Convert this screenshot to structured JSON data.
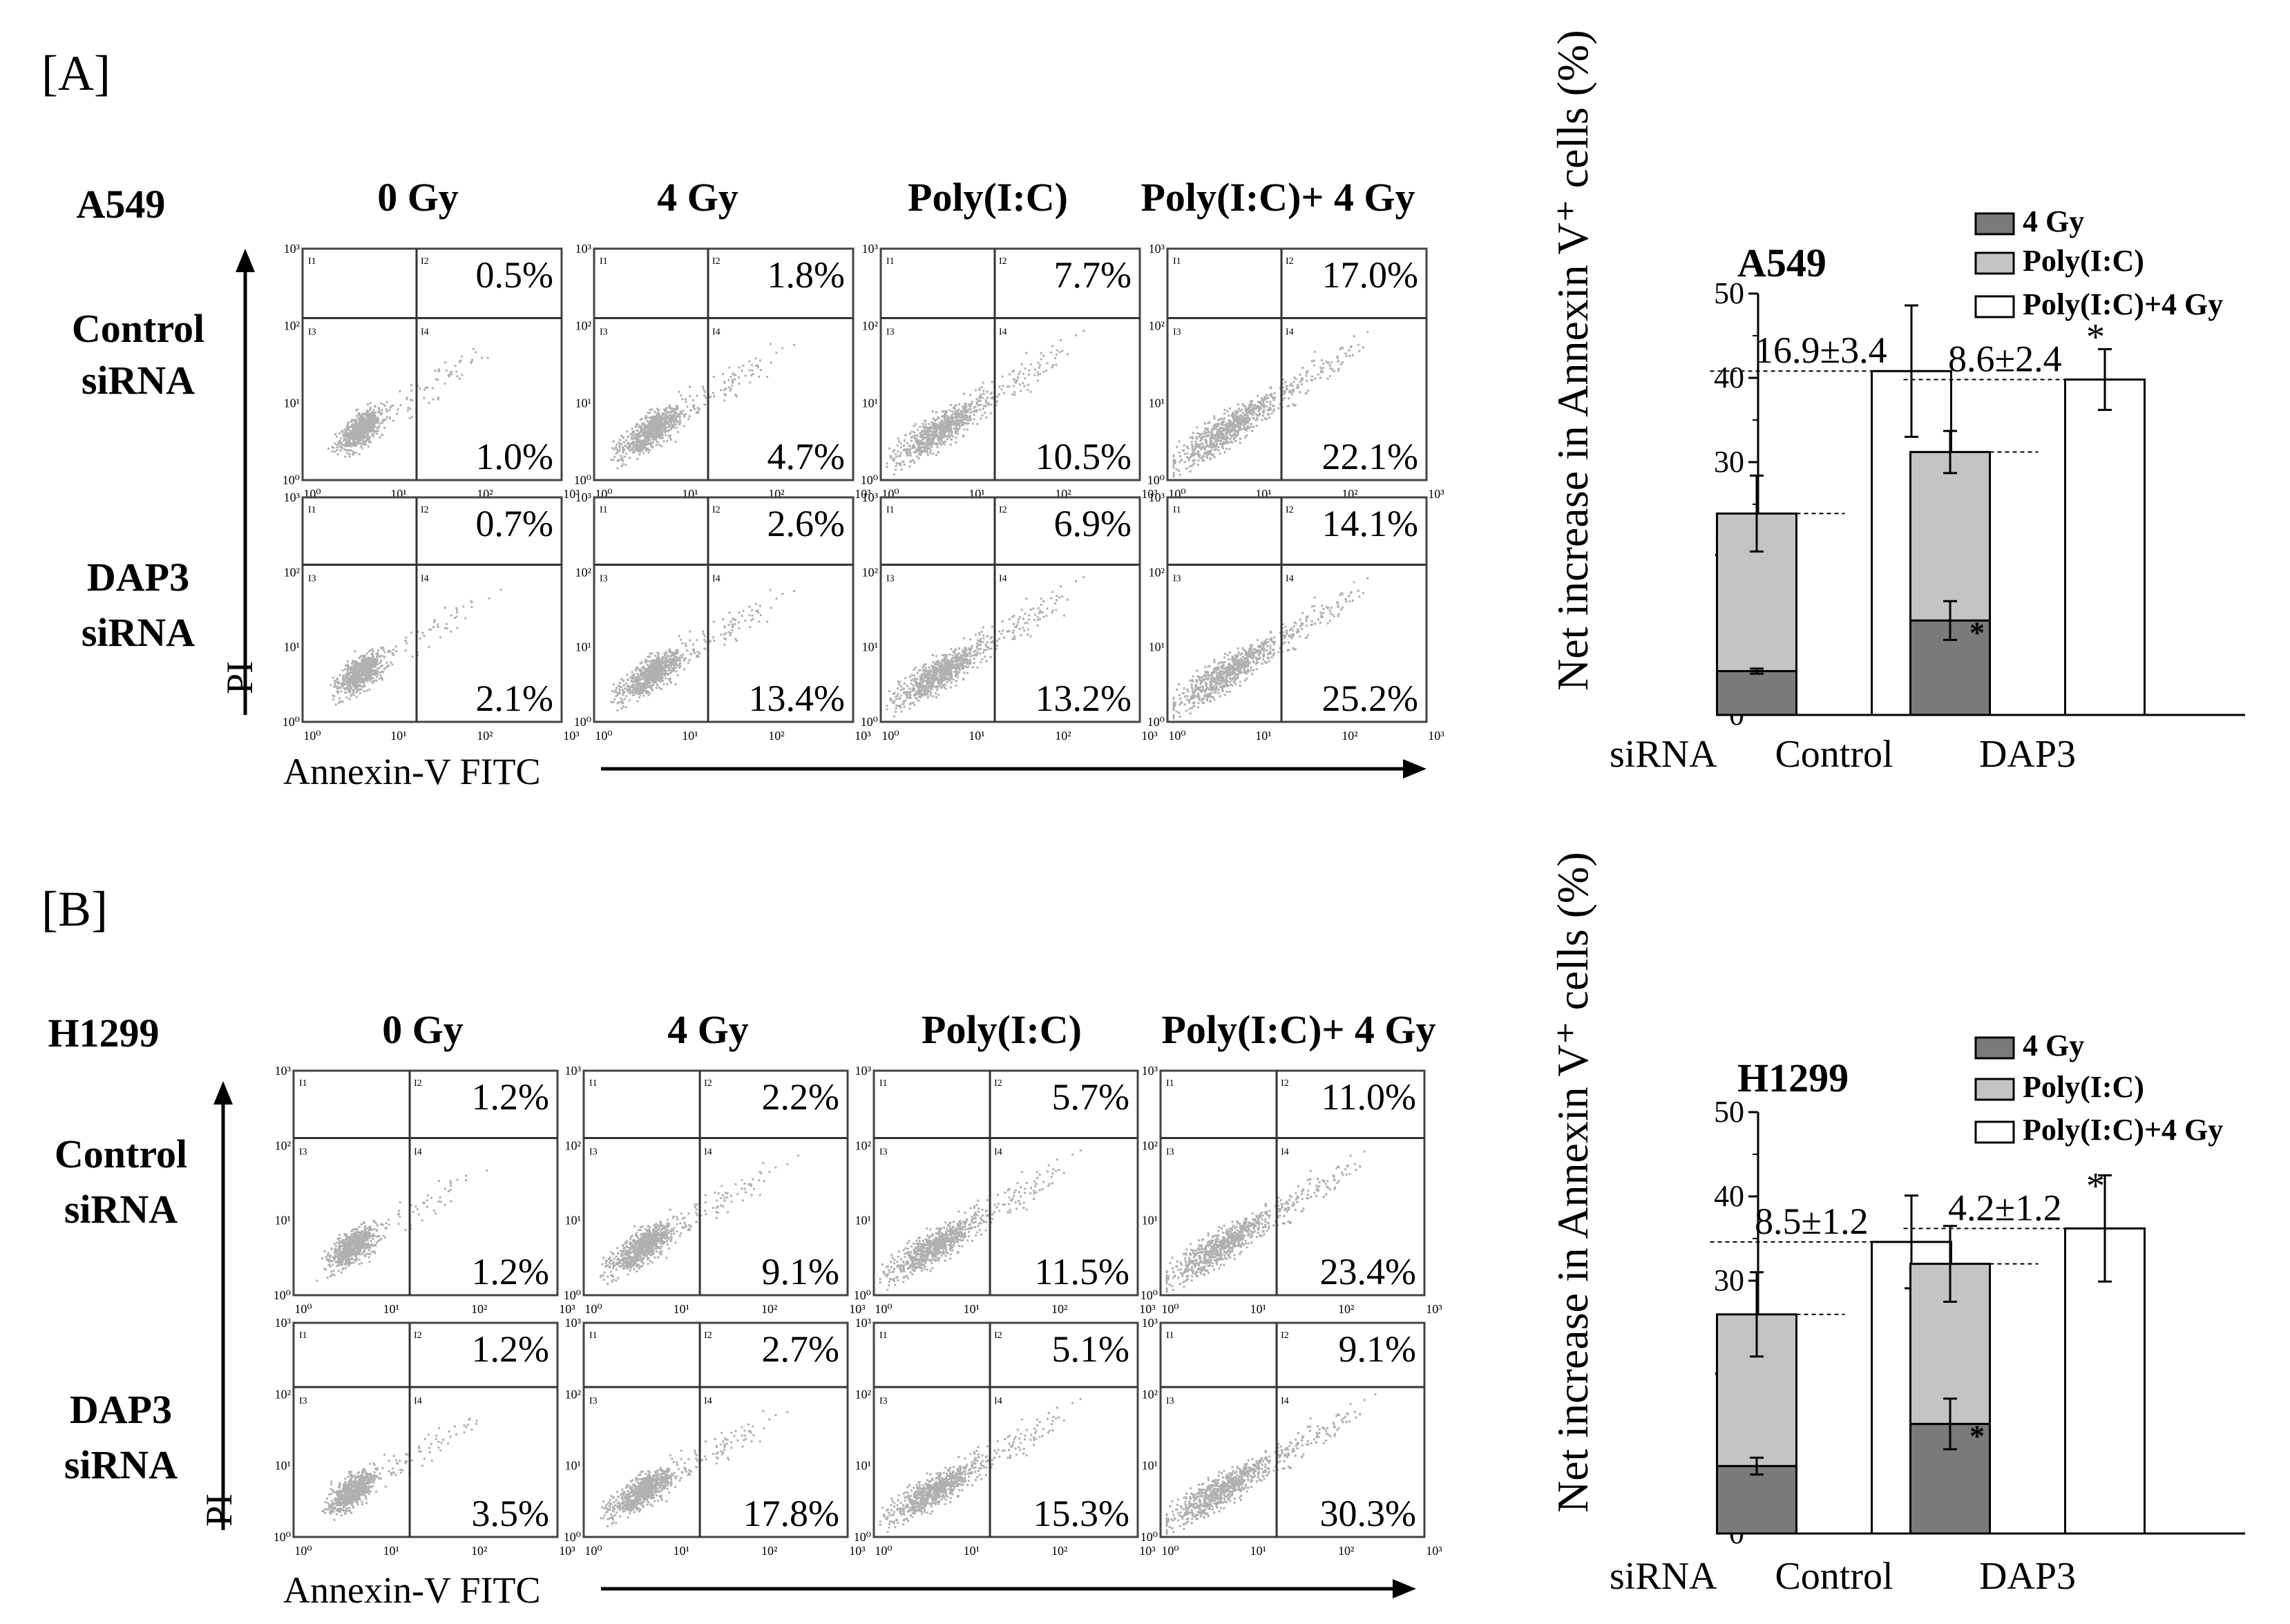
{
  "title": "",
  "colors": {
    "bar_4gy": "#7a7a7a",
    "bar_polyic": "#c4c4c4",
    "bar_combo": "#ffffff",
    "dots": "#b0b0b0"
  },
  "panels": [
    {
      "label": "[A]",
      "cell_line": "A549",
      "conditions": [
        "0 Gy",
        "4 Gy",
        "Poly(I:C)",
        "Poly(I:C)+ 4 Gy"
      ],
      "rows": [
        {
          "name": "Control\nsiRNA",
          "upper": [
            "0.5%",
            "1.8%",
            "7.7%",
            "17.0%"
          ],
          "lower": [
            "1.0%",
            "4.7%",
            "10.5%",
            "22.1%"
          ]
        },
        {
          "name": "DAP3\nsiRNA",
          "upper": [
            "0.7%",
            "2.6%",
            "6.9%",
            "14.1%"
          ],
          "lower": [
            "2.1%",
            "13.4%",
            "13.2%",
            "25.2%"
          ]
        }
      ],
      "y_axis_label": "PI",
      "x_axis_label": "Annexin-V FITC",
      "flow_ticks": [
        "10⁰",
        "10¹",
        "10²",
        "10³"
      ],
      "quadrant_labels": [
        "I1",
        "I2",
        "I3",
        "I4"
      ]
    },
    {
      "label": "[B]",
      "cell_line": "H1299",
      "conditions": [
        "0 Gy",
        "4 Gy",
        "Poly(I:C)",
        "Poly(I:C)+ 4 Gy"
      ],
      "rows": [
        {
          "name": "Control\nsiRNA",
          "upper": [
            "1.2%",
            "2.2%",
            "5.7%",
            "11.0%"
          ],
          "lower": [
            "1.2%",
            "9.1%",
            "11.5%",
            "23.4%"
          ]
        },
        {
          "name": "DAP3\nsiRNA",
          "upper": [
            "1.2%",
            "2.7%",
            "5.1%",
            "9.1%"
          ],
          "lower": [
            "3.5%",
            "17.8%",
            "15.3%",
            "30.3%"
          ]
        }
      ],
      "y_axis_label": "PI",
      "x_axis_label": "Annexin-V FITC",
      "flow_ticks": [
        "10⁰",
        "10¹",
        "10²",
        "10³"
      ],
      "quadrant_labels": [
        "I1",
        "I2",
        "I3",
        "I4"
      ]
    }
  ],
  "chart_data": [
    {
      "type": "bar",
      "title": "A549",
      "ylabel": "Net increase in Annexin V⁺ cells (%)",
      "xlabel": "siRNA",
      "categories": [
        "Control",
        "DAP3"
      ],
      "ylim": [
        0,
        50
      ],
      "yticks": [
        0,
        10,
        20,
        30,
        40,
        50
      ],
      "legend": [
        "4 Gy",
        "Poly(I:C)",
        "Poly(I:C)+4 Gy"
      ],
      "legend_position": "top-right",
      "series": [
        {
          "name": "4 Gy",
          "values": [
            5.2,
            11.2
          ],
          "errors": [
            0.3,
            2.3
          ],
          "stacked": true
        },
        {
          "name": "Poly(I:C)",
          "values": [
            18.7,
            20.0
          ],
          "errors": [
            4.5,
            2.5
          ],
          "stacked": true
        },
        {
          "name": "Poly(I:C)+4 Gy",
          "values": [
            40.8,
            39.8
          ],
          "errors": [
            7.8,
            3.6
          ]
        }
      ],
      "annotations": [
        "16.9±3.4",
        "8.6±2.4"
      ],
      "significance_mark": "*"
    },
    {
      "type": "bar",
      "title": "H1299",
      "ylabel": "Net increase in Annexin V⁺ cells (%)",
      "xlabel": "siRNA",
      "categories": [
        "Control",
        "DAP3"
      ],
      "ylim": [
        0,
        50
      ],
      "yticks": [
        0,
        10,
        20,
        30,
        40,
        50
      ],
      "legend": [
        "4 Gy",
        "Poly(I:C)",
        "Poly(I:C)+4 Gy"
      ],
      "legend_position": "top-right",
      "series": [
        {
          "name": "4 Gy",
          "values": [
            8.0,
            13.0
          ],
          "errors": [
            1.0,
            3.0
          ],
          "stacked": true
        },
        {
          "name": "Poly(I:C)",
          "values": [
            18.0,
            19.0
          ],
          "errors": [
            5.0,
            4.5
          ],
          "stacked": true
        },
        {
          "name": "Poly(I:C)+4 Gy",
          "values": [
            34.6,
            36.2
          ],
          "errors": [
            5.5,
            6.3
          ]
        }
      ],
      "annotations": [
        "8.5±1.2",
        "4.2±1.2"
      ],
      "significance_mark": "*"
    }
  ]
}
